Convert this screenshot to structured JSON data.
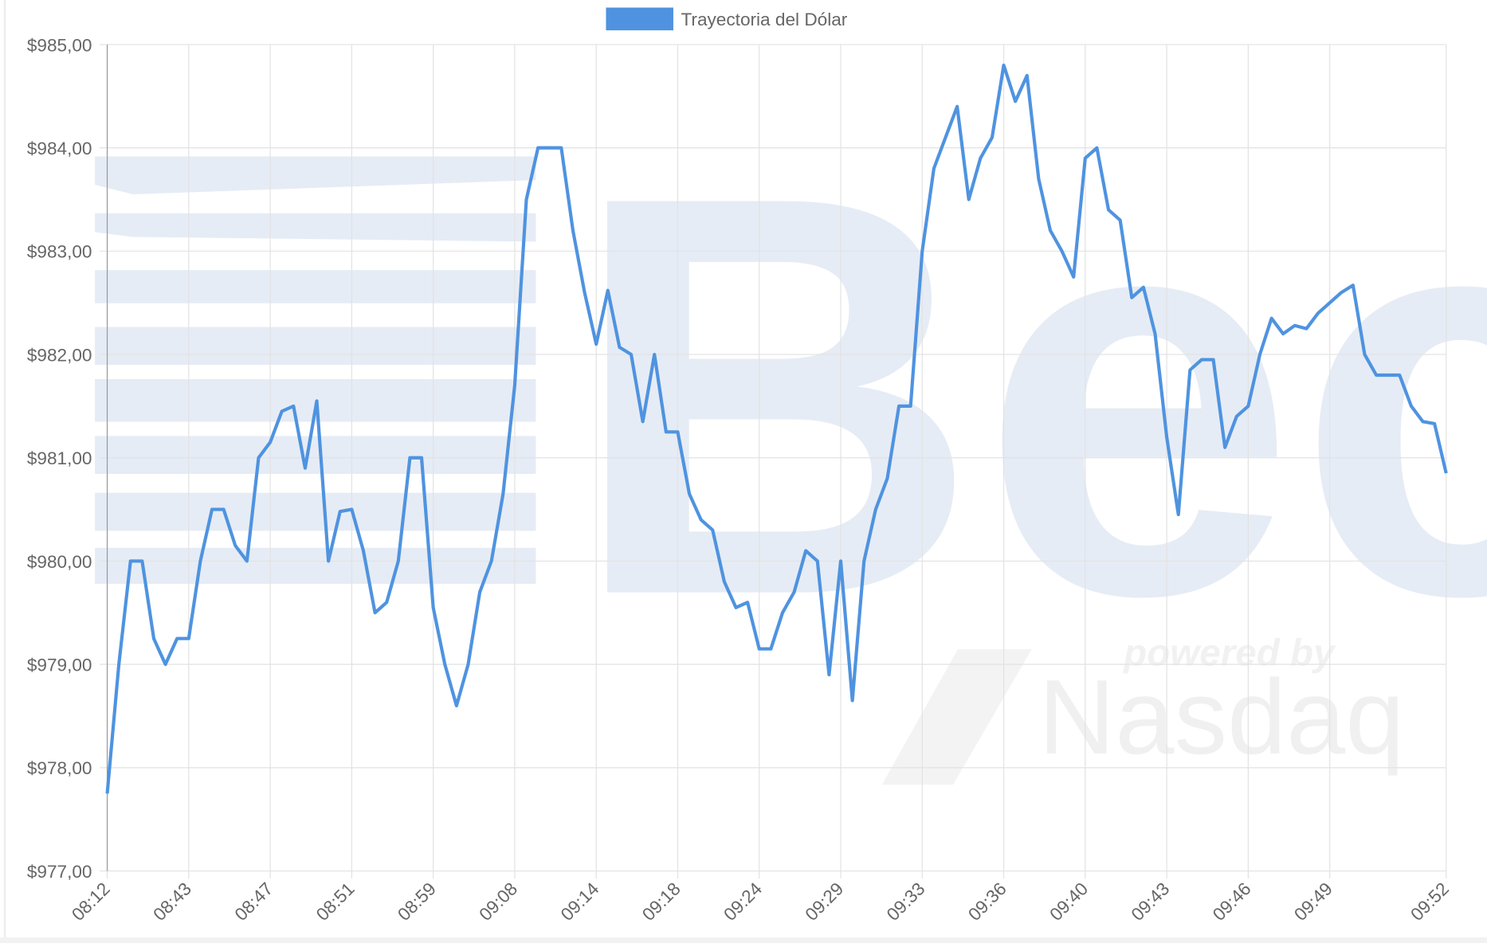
{
  "chart_data": {
    "type": "line",
    "legend": "top",
    "grid": true,
    "watermark": {
      "logo": "Bec",
      "tagline": "powered by",
      "brand": "Nasdaq"
    },
    "categories": [
      "08:12",
      null,
      null,
      null,
      null,
      null,
      null,
      "08:43",
      null,
      null,
      null,
      null,
      null,
      null,
      "08:47",
      null,
      null,
      null,
      null,
      null,
      null,
      "08:51",
      null,
      null,
      null,
      null,
      null,
      null,
      "08:59",
      null,
      null,
      null,
      null,
      null,
      null,
      "09:08",
      null,
      null,
      null,
      null,
      null,
      null,
      "09:14",
      null,
      null,
      null,
      null,
      null,
      null,
      "09:18",
      null,
      null,
      null,
      null,
      null,
      null,
      "09:24",
      null,
      null,
      null,
      null,
      null,
      null,
      "09:29",
      null,
      null,
      null,
      null,
      null,
      null,
      "09:33",
      null,
      null,
      null,
      null,
      null,
      null,
      "09:36",
      null,
      null,
      null,
      null,
      null,
      null,
      "09:40",
      null,
      null,
      null,
      null,
      null,
      null,
      "09:43",
      null,
      null,
      null,
      null,
      null,
      null,
      "09:46",
      null,
      null,
      null,
      null,
      null,
      null,
      "09:49",
      null,
      null,
      null,
      null,
      null,
      null,
      null,
      null,
      null,
      "09:52"
    ],
    "series": [
      {
        "name": "Trayectoria del Dólar",
        "color": "#4f93e0",
        "values": [
          977.75,
          979.0,
          980.0,
          980.0,
          979.25,
          979.0,
          979.25,
          979.25,
          980.0,
          980.5,
          980.5,
          980.15,
          980.0,
          981.0,
          981.15,
          981.45,
          981.5,
          980.9,
          981.55,
          980.0,
          980.48,
          980.5,
          980.1,
          979.5,
          979.6,
          980.0,
          981.0,
          981.0,
          979.55,
          979.0,
          978.6,
          979.0,
          979.7,
          980.0,
          980.65,
          981.7,
          983.5,
          984.0,
          984.0,
          984.0,
          983.2,
          982.6,
          982.1,
          982.62,
          982.07,
          982.0,
          981.35,
          982.0,
          981.25,
          981.25,
          980.65,
          980.4,
          980.3,
          979.8,
          979.55,
          979.6,
          979.15,
          979.15,
          979.5,
          979.7,
          980.1,
          980.0,
          978.9,
          980.0,
          978.65,
          980.0,
          980.5,
          980.8,
          981.5,
          981.5,
          983.0,
          983.8,
          984.1,
          984.4,
          983.5,
          983.9,
          984.1,
          984.8,
          984.45,
          984.7,
          983.7,
          983.2,
          983.0,
          982.75,
          983.9,
          984.0,
          983.4,
          983.3,
          982.55,
          982.65,
          982.2,
          981.2,
          980.45,
          981.85,
          981.95,
          981.95,
          981.1,
          981.4,
          981.5,
          982.0,
          982.35,
          982.2,
          982.28,
          982.25,
          982.4,
          982.5,
          982.6,
          982.67,
          982.0,
          981.8,
          981.8,
          981.8,
          981.5,
          981.35,
          981.33,
          980.85
        ]
      }
    ],
    "ylim": [
      977,
      985
    ],
    "yticks": [
      {
        "value": 977,
        "label": "$977,00"
      },
      {
        "value": 978,
        "label": "$978,00"
      },
      {
        "value": 979,
        "label": "$979,00"
      },
      {
        "value": 980,
        "label": "$980,00"
      },
      {
        "value": 981,
        "label": "$981,00"
      },
      {
        "value": 982,
        "label": "$982,00"
      },
      {
        "value": 983,
        "label": "$983,00"
      },
      {
        "value": 984,
        "label": "$984,00"
      },
      {
        "value": 985,
        "label": "$985,00"
      }
    ]
  }
}
